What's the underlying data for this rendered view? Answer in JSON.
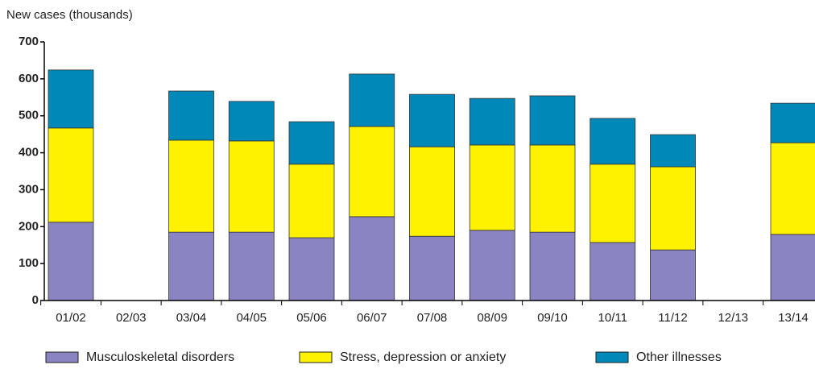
{
  "chart_data": {
    "type": "stacked-bar",
    "y_label": "New cases (thousands)",
    "categories": [
      "01/02",
      "02/03",
      "03/04",
      "04/05",
      "05/06",
      "06/07",
      "07/08",
      "08/09",
      "09/10",
      "10/11",
      "11/12",
      "12/13",
      "13/14"
    ],
    "series": [
      {
        "name": "Musculoskeletal disorders",
        "color": "#8a84c2",
        "values": [
          212,
          null,
          185,
          185,
          170,
          227,
          174,
          190,
          185,
          157,
          137,
          null,
          179
        ]
      },
      {
        "name": "Stress, depression or anxiety",
        "color": "#fff200",
        "values": [
          255,
          null,
          249,
          247,
          199,
          244,
          242,
          231,
          236,
          212,
          225,
          null,
          248
        ]
      },
      {
        "name": "Other illnesses",
        "color": "#0088b9",
        "values": [
          157,
          null,
          133,
          107,
          115,
          142,
          142,
          126,
          133,
          124,
          87,
          null,
          107
        ]
      }
    ],
    "ylim": [
      0,
      700
    ],
    "yticks": [
      0,
      100,
      200,
      300,
      400,
      500,
      600,
      700
    ],
    "grid": false,
    "legend": "bottom"
  }
}
